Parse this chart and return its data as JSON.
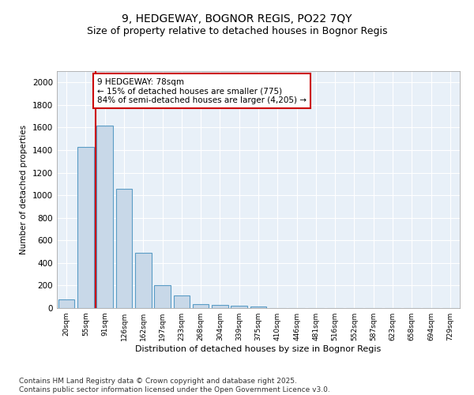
{
  "title_line1": "9, HEDGEWAY, BOGNOR REGIS, PO22 7QY",
  "title_line2": "Size of property relative to detached houses in Bognor Regis",
  "xlabel": "Distribution of detached houses by size in Bognor Regis",
  "ylabel": "Number of detached properties",
  "categories": [
    "20sqm",
    "55sqm",
    "91sqm",
    "126sqm",
    "162sqm",
    "197sqm",
    "233sqm",
    "268sqm",
    "304sqm",
    "339sqm",
    "375sqm",
    "410sqm",
    "446sqm",
    "481sqm",
    "516sqm",
    "552sqm",
    "587sqm",
    "623sqm",
    "658sqm",
    "694sqm",
    "729sqm"
  ],
  "values": [
    80,
    1430,
    1620,
    1060,
    490,
    205,
    110,
    38,
    28,
    18,
    12,
    0,
    0,
    0,
    0,
    0,
    0,
    0,
    0,
    0,
    0
  ],
  "bar_color": "#c8d8e8",
  "bar_edge_color": "#5a9cc5",
  "vline_color": "#cc0000",
  "annotation_text": "9 HEDGEWAY: 78sqm\n← 15% of detached houses are smaller (775)\n84% of semi-detached houses are larger (4,205) →",
  "annotation_box_color": "#ffffff",
  "annotation_box_edge": "#cc0000",
  "ylim": [
    0,
    2100
  ],
  "yticks": [
    0,
    200,
    400,
    600,
    800,
    1000,
    1200,
    1400,
    1600,
    1800,
    2000
  ],
  "bg_color": "#e8f0f8",
  "grid_color": "#ffffff",
  "footnote": "Contains HM Land Registry data © Crown copyright and database right 2025.\nContains public sector information licensed under the Open Government Licence v3.0.",
  "title_fontsize": 10,
  "subtitle_fontsize": 9,
  "annotation_fontsize": 7.5,
  "footnote_fontsize": 6.5
}
